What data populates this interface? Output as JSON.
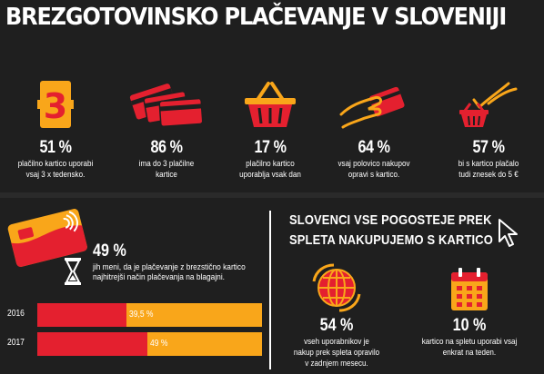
{
  "title": "BREZGOTOVINSKO PLAČEVANJE V SLOVENIJI",
  "colors": {
    "background": "#1f1f1f",
    "red": "#e4202f",
    "orange": "#f9a61a",
    "text": "#ffffff"
  },
  "top_stats": [
    {
      "icon": "number-three-icon",
      "icon_text": "3",
      "percent": "51 %",
      "line1": "plačilno kartico uporabi",
      "line2": "vsaj 3 x tedensko."
    },
    {
      "icon": "stacked-cards-icon",
      "percent": "86 %",
      "line1": "ima do 3 plačilne",
      "line2": "kartice"
    },
    {
      "icon": "shopping-basket-icon",
      "percent": "17 %",
      "line1": "plačilno kartico",
      "line2": "uporablja vsak dan"
    },
    {
      "icon": "hand-card-icon",
      "percent": "64 %",
      "line1": "vsaj polovico nakupov",
      "line2": "opravi s kartico."
    },
    {
      "icon": "hand-basket-icon",
      "percent": "57 %",
      "line1": "bi s kartico plačalo",
      "line2": "tudi znesek do 5 €"
    }
  ],
  "contactless": {
    "percent": "49 %",
    "line1": "jih meni, da je plačevanje z brezstično kartico",
    "line2": "najhitrejši način plačevanja na blagajni."
  },
  "chart_data": {
    "type": "bar",
    "orientation": "horizontal",
    "categories": [
      "2016",
      "2017"
    ],
    "values": [
      39.5,
      49
    ],
    "labels": [
      "39,5 %",
      "49 %"
    ],
    "xlim": [
      0,
      100
    ]
  },
  "online": {
    "heading_line1": "SLOVENCI VSE POGOSTEJE PREK",
    "heading_line2": "SPLETA NAKUPUJEMO S KARTICO",
    "stats": [
      {
        "icon": "globe-cart-icon",
        "percent": "54 %",
        "line1": "vseh uporabnikov je",
        "line2": "nakup prek spleta opravilo",
        "line3": "v zadnjem mesecu."
      },
      {
        "icon": "calendar-icon",
        "percent": "10 %",
        "line1": "kartico na spletu uporabi vsaj",
        "line2": "enkrat na teden.",
        "line3": ""
      }
    ]
  }
}
